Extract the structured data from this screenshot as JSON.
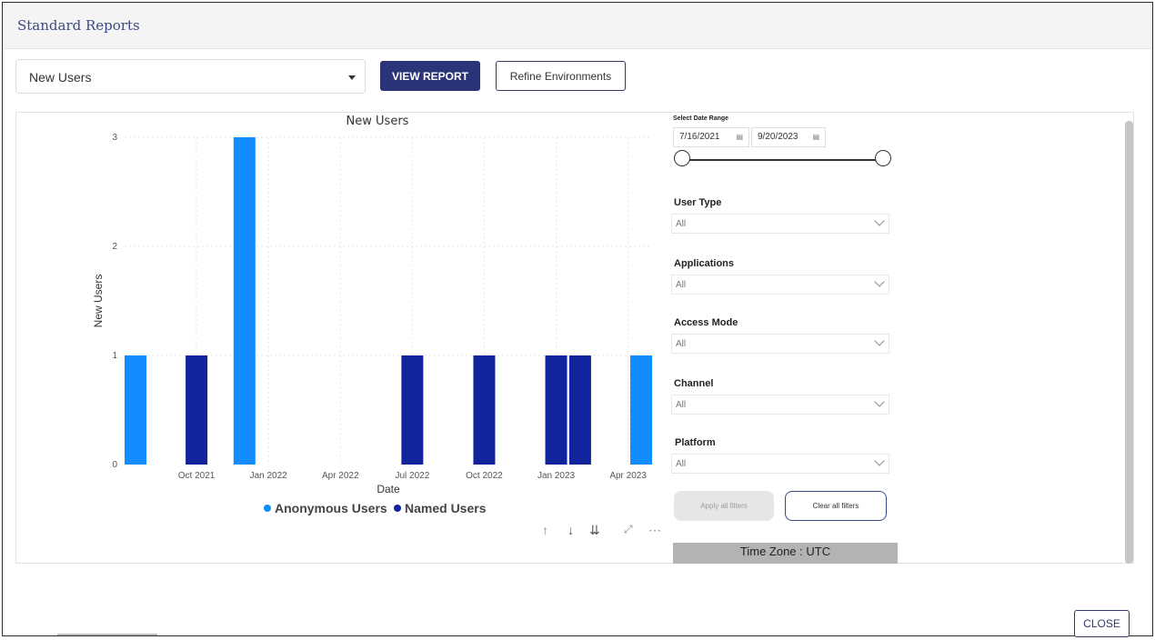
{
  "header": {
    "title": "Standard Reports"
  },
  "report_select": {
    "value": "New Users"
  },
  "buttons": {
    "view_report": "VIEW REPORT",
    "refine_env": "Refine Environments",
    "close": "CLOSE"
  },
  "chart_data": {
    "type": "bar",
    "title": "New Users",
    "xlabel": "Date",
    "ylabel": "New Users",
    "ylim": [
      0,
      3
    ],
    "yticks": [
      0,
      1,
      2,
      3
    ],
    "xticks": [
      "Oct 2021",
      "Jan 2022",
      "Apr 2022",
      "Jul 2022",
      "Oct 2022",
      "Jan 2023",
      "Apr 2023"
    ],
    "legend": {
      "placement": "bottom",
      "entries": [
        "Anonymous Users",
        "Named Users"
      ]
    },
    "grid": true,
    "colors": {
      "Anonymous Users": "#118dff",
      "Named Users": "#12239e"
    },
    "bars": [
      {
        "date": "2021-07",
        "series": "Anonymous Users",
        "value": 1
      },
      {
        "date": "2021-10",
        "series": "Named Users",
        "value": 1
      },
      {
        "date": "2021-12",
        "series": "Anonymous Users",
        "value": 3
      },
      {
        "date": "2022-07",
        "series": "Named Users",
        "value": 1
      },
      {
        "date": "2022-10",
        "series": "Named Users",
        "value": 1
      },
      {
        "date": "2023-01",
        "series": "Named Users",
        "value": 1
      },
      {
        "date": "2023-02",
        "series": "Named Users",
        "value": 1
      },
      {
        "date": "2023-04",
        "series": "Anonymous Users",
        "value": 1
      }
    ]
  },
  "chart_controls": {
    "icons": [
      "arrow-up-icon",
      "arrow-down-icon",
      "double-arrow-down-icon",
      "focus-mode-icon",
      "more-options-icon"
    ]
  },
  "filters": {
    "date_range_label": "Select Date Range",
    "start_date": "7/16/2021",
    "end_date": "9/20/2023",
    "dropdowns": [
      {
        "label": "User Type",
        "value": "All"
      },
      {
        "label": "Applications",
        "value": "All"
      },
      {
        "label": "Access Mode",
        "value": "All"
      },
      {
        "label": "Channel",
        "value": "All"
      },
      {
        "label": "Platform",
        "value": "All"
      }
    ],
    "apply": "Apply all filters",
    "clear": "Clear all filters",
    "time_zone": "Time Zone : UTC"
  }
}
